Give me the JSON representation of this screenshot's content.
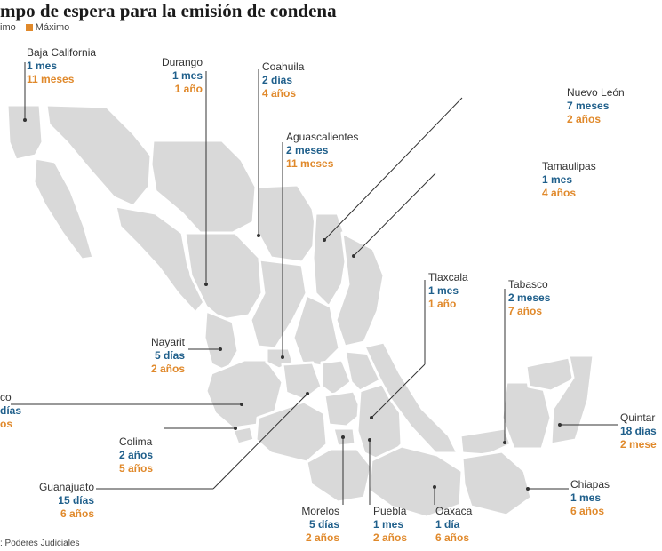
{
  "title": "mpo de espera para la emisión de condena",
  "legend": {
    "min_label": "imo",
    "max_label": "Máximo",
    "min_color": "#1f5f8b",
    "max_color": "#e0892b"
  },
  "source": ": Poderes Judiciales",
  "states": [
    {
      "key": "baja_california",
      "name": "Baja California",
      "min": "1 mes",
      "max": "11 meses"
    },
    {
      "key": "durango",
      "name": "Durango",
      "min": "1 mes",
      "max": "1 año"
    },
    {
      "key": "coahuila",
      "name": "Coahuila",
      "min": "2 días",
      "max": "4 años"
    },
    {
      "key": "aguascalientes",
      "name": "Aguascalientes",
      "min": "2 meses",
      "max": "11 meses"
    },
    {
      "key": "nuevo_leon",
      "name": "Nuevo León",
      "min": "7 meses",
      "max": "2 años"
    },
    {
      "key": "tamaulipas",
      "name": "Tamaulipas",
      "min": "1 mes",
      "max": "4 años"
    },
    {
      "key": "tlaxcala",
      "name": "Tlaxcala",
      "min": "1 mes",
      "max": "1 año"
    },
    {
      "key": "tabasco",
      "name": "Tabasco",
      "min": "2 meses",
      "max": "7 años"
    },
    {
      "key": "nayarit",
      "name": "Nayarit",
      "min": "5 días",
      "max": "2 años"
    },
    {
      "key": "jalisco",
      "name": "co",
      "min": "días",
      "max": "os"
    },
    {
      "key": "quintana_roo",
      "name": "Quintar",
      "min": "18 días",
      "max": "2 mese"
    },
    {
      "key": "colima",
      "name": "Colima",
      "min": "2 años",
      "max": "5 años"
    },
    {
      "key": "guanajuato",
      "name": "Guanajuato",
      "min": "15 días",
      "max": "6 años"
    },
    {
      "key": "chiapas",
      "name": "Chiapas",
      "min": "1 mes",
      "max": "6 años"
    },
    {
      "key": "morelos",
      "name": "Morelos",
      "min": "5 días",
      "max": "2 años"
    },
    {
      "key": "puebla",
      "name": "Puebla",
      "min": "1 mes",
      "max": "2 años"
    },
    {
      "key": "oaxaca",
      "name": "Oaxaca",
      "min": "1 día",
      "max": "6 años"
    }
  ]
}
